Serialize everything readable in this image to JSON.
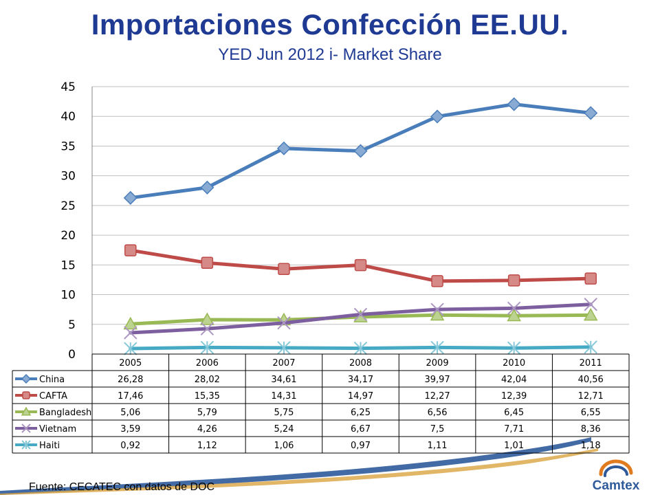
{
  "slide": {
    "title": "Importaciones Confección EE.UU.",
    "subtitle": "YED Jun 2012 i- Market Share",
    "source": "Fuente: CECATEC con datos de DOC",
    "logo_text": "Camtex"
  },
  "colors": {
    "title": "#1f3a93",
    "China": "#4a7ebb",
    "CAFTA": "#be4b48",
    "Bangladesh": "#98b954",
    "Vietnam": "#7d5fa0",
    "Haiti": "#46aac5",
    "gridline": "#bfbfbf",
    "swoosh_blue": "#2e5a9a"
  },
  "chart_data": {
    "type": "line",
    "title": "",
    "xlabel": "",
    "ylabel": "",
    "ylim": [
      0,
      45
    ],
    "yticks": [
      0,
      5,
      10,
      15,
      20,
      25,
      30,
      35,
      40,
      45
    ],
    "grid": true,
    "legend": "data-table",
    "categories": [
      "2005",
      "2006",
      "2007",
      "2008",
      "2009",
      "2010",
      "2011"
    ],
    "series": [
      {
        "name": "China",
        "marker": "diamond",
        "values": [
          26.28,
          28.02,
          34.61,
          34.17,
          39.97,
          42.04,
          40.56
        ],
        "labels": [
          "26,28",
          "28,02",
          "34,61",
          "34,17",
          "39,97",
          "42,04",
          "40,56"
        ]
      },
      {
        "name": "CAFTA",
        "marker": "square",
        "values": [
          17.46,
          15.35,
          14.31,
          14.97,
          12.27,
          12.39,
          12.71
        ],
        "labels": [
          "17,46",
          "15,35",
          "14,31",
          "14,97",
          "12,27",
          "12,39",
          "12,71"
        ]
      },
      {
        "name": "Bangladesh",
        "marker": "triangle",
        "values": [
          5.06,
          5.79,
          5.75,
          6.25,
          6.56,
          6.45,
          6.55
        ],
        "labels": [
          "5,06",
          "5,79",
          "5,75",
          "6,25",
          "6,56",
          "6,45",
          "6,55"
        ]
      },
      {
        "name": "Vietnam",
        "marker": "x",
        "values": [
          3.59,
          4.26,
          5.24,
          6.67,
          7.5,
          7.71,
          8.36
        ],
        "labels": [
          "3,59",
          "4,26",
          "5,24",
          "6,67",
          "7,5",
          "7,71",
          "8,36"
        ]
      },
      {
        "name": "Haiti",
        "marker": "star",
        "values": [
          0.92,
          1.12,
          1.06,
          0.97,
          1.11,
          1.01,
          1.18
        ],
        "labels": [
          "0,92",
          "1,12",
          "1,06",
          "0,97",
          "1,11",
          "1,01",
          "1,18"
        ]
      }
    ]
  }
}
